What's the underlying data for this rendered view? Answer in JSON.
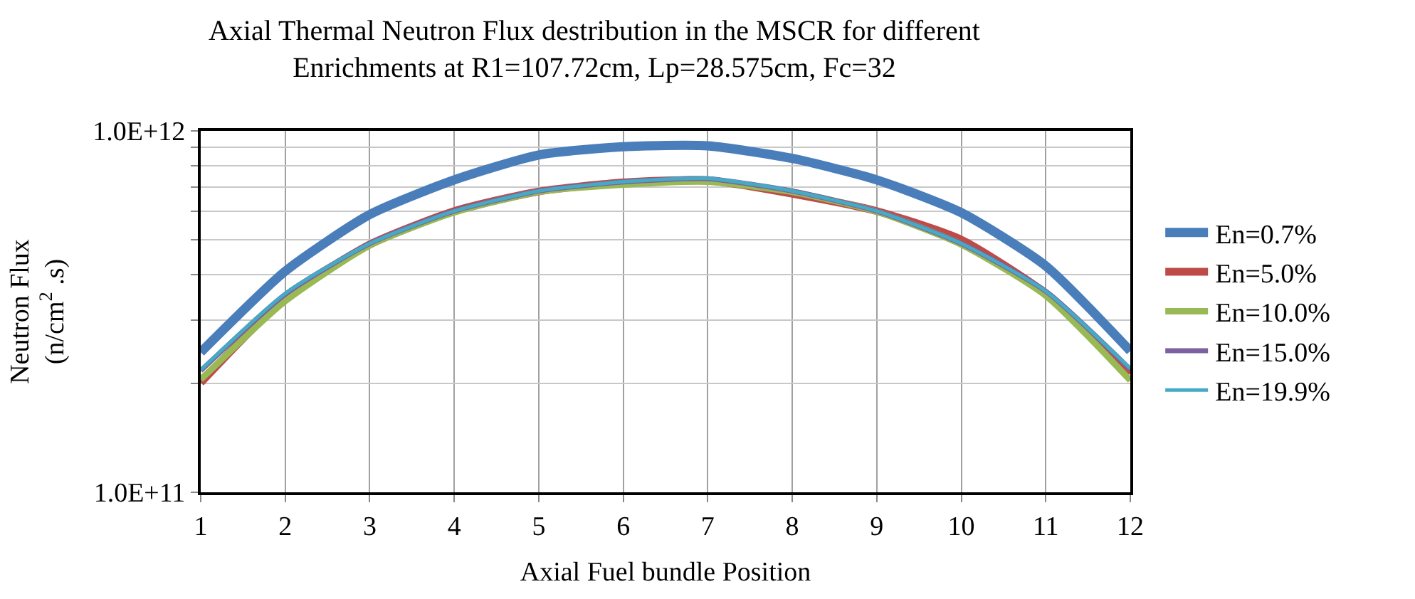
{
  "chart_data": {
    "type": "line",
    "title": "Axial Thermal Neutron Flux destribution in the MSCR for different\nEnrichments at R1=107.72cm, Lp=28.575cm, Fc=32",
    "xlabel": "Axial Fuel bundle Position",
    "ylabel": "Neutron Flux\n(n/cm$^{2}$ .s)",
    "x": [
      1,
      2,
      3,
      4,
      5,
      6,
      7,
      8,
      9,
      10,
      11,
      12
    ],
    "series": [
      {
        "name": "En=0.7%",
        "color": "#4a7ebb",
        "values": [
          244000000000.0,
          409000000000.0,
          587000000000.0,
          732000000000.0,
          858000000000.0,
          904000000000.0,
          909000000000.0,
          839000000000.0,
          732000000000.0,
          594000000000.0,
          423000000000.0,
          246000000000.0
        ]
      },
      {
        "name": "En=5.0%",
        "color": "#be4b48",
        "values": [
          201000000000.0,
          345000000000.0,
          485000000000.0,
          600000000000.0,
          680000000000.0,
          720000000000.0,
          730000000000.0,
          670000000000.0,
          600000000000.0,
          500000000000.0,
          355000000000.0,
          213000000000.0
        ]
      },
      {
        "name": "En=10.0%",
        "color": "#98b954",
        "values": [
          205000000000.0,
          338000000000.0,
          482000000000.0,
          595000000000.0,
          678000000000.0,
          710000000000.0,
          723000000000.0,
          678000000000.0,
          598000000000.0,
          485000000000.0,
          350000000000.0,
          204000000000.0
        ]
      },
      {
        "name": "En=15.0%",
        "color": "#7d60a0",
        "values": [
          217000000000.0,
          353000000000.0,
          488000000000.0,
          600000000000.0,
          682000000000.0,
          722000000000.0,
          737000000000.0,
          682000000000.0,
          600000000000.0,
          488000000000.0,
          360000000000.0,
          219000000000.0
        ]
      },
      {
        "name": "En=19.9%",
        "color": "#46aac5",
        "values": [
          218000000000.0,
          355000000000.0,
          488000000000.0,
          600000000000.0,
          682000000000.0,
          723000000000.0,
          739000000000.0,
          682000000000.0,
          600000000000.0,
          488000000000.0,
          360000000000.0,
          220000000000.0
        ]
      }
    ],
    "log": "y",
    "xlim": [
      1,
      12
    ],
    "xticks": [
      1,
      2,
      3,
      4,
      5,
      6,
      7,
      8,
      9,
      10,
      11,
      12
    ],
    "ylim": [
      100000000000.0,
      1000000000000.0
    ],
    "yticks": [
      {
        "value": 100000000000.0,
        "label": "1.0E+11"
      },
      {
        "value": 200000000000.0,
        "label": null
      },
      {
        "value": 300000000000.0,
        "label": null
      },
      {
        "value": 400000000000.0,
        "label": null
      },
      {
        "value": 500000000000.0,
        "label": null
      },
      {
        "value": 600000000000.0,
        "label": null
      },
      {
        "value": 700000000000.0,
        "label": null
      },
      {
        "value": 800000000000.0,
        "label": null
      },
      {
        "value": 900000000000.0,
        "label": null
      },
      {
        "value": 1000000000000.0,
        "label": "1.0E+12"
      }
    ],
    "grid": true,
    "legend": "right",
    "marker": "none",
    "line_style": "solid"
  }
}
